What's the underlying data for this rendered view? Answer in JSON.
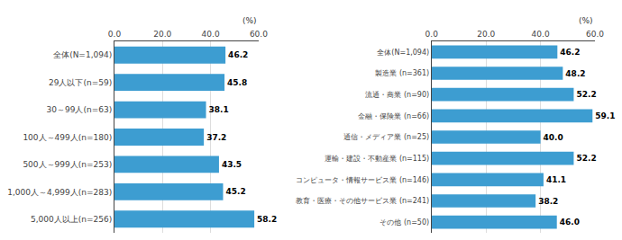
{
  "chart_data": [
    {
      "type": "bar",
      "orientation": "horizontal",
      "categories": [
        "全体(N=1,094)",
        "29人以下(n=59)",
        "30～99人(n=63)",
        "100人～499人(n=180)",
        "500人～999人(n=253)",
        "1,000人～4,999人(n=283)",
        "5,000人以上(n=256)"
      ],
      "values": [
        46.2,
        45.8,
        38.1,
        37.2,
        43.5,
        45.2,
        58.2
      ],
      "value_labels": [
        "46.2",
        "45.8",
        "38.1",
        "37.2",
        "43.5",
        "45.2",
        "58.2"
      ],
      "color": "#3D9DD1",
      "xlim": [
        0,
        60
      ],
      "xticks": [
        {
          "value": 0,
          "label": "0.0"
        },
        {
          "value": 20,
          "label": "20.0"
        },
        {
          "value": 40,
          "label": "40.0"
        },
        {
          "value": 60,
          "label": "60.0"
        }
      ],
      "xlabel": "(%)",
      "grid": true,
      "data_labels": true
    },
    {
      "type": "bar",
      "orientation": "horizontal",
      "categories": [
        "全体(N=1,094)",
        "製造業 (n=361)",
        "流通・商業 (n=90)",
        "金融・保険業 (n=66)",
        "通信・メディア業 (n=25)",
        "運輸・建設・不動産業 (n=115)",
        "コンピュータ・情報サービス業 (n=146)",
        "教育・医療・その他サービス業 (n=241)",
        "その他 (n=50)"
      ],
      "values": [
        46.2,
        48.2,
        52.2,
        59.1,
        40.0,
        52.2,
        41.1,
        38.2,
        46.0
      ],
      "value_labels": [
        "46.2",
        "48.2",
        "52.2",
        "59.1",
        "40.0",
        "52.2",
        "41.1",
        "38.2",
        "46.0"
      ],
      "color": "#3D9DD1",
      "xlim": [
        0,
        60
      ],
      "xticks": [
        {
          "value": 0,
          "label": "0.0"
        },
        {
          "value": 20,
          "label": "20.0"
        },
        {
          "value": 40,
          "label": "40.0"
        },
        {
          "value": 60,
          "label": "60.0"
        }
      ],
      "xlabel": "(%)",
      "grid": true,
      "data_labels": true
    }
  ]
}
